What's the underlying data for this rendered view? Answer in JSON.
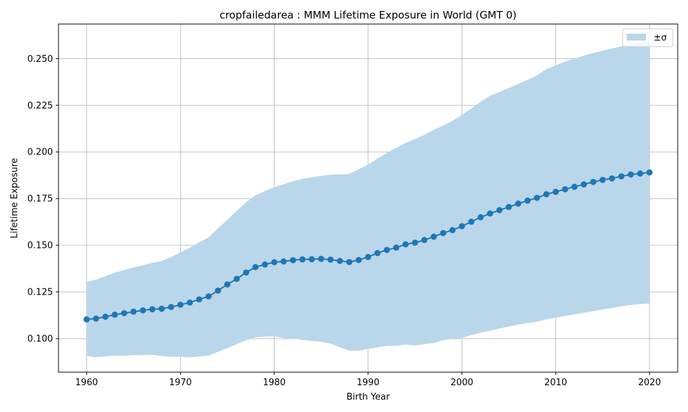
{
  "chart_data": {
    "type": "line",
    "title": "cropfailedarea : MMM Lifetime Exposure in World (GMT 0)",
    "xlabel": "Birth Year",
    "ylabel": "Lifetime Exposure",
    "xlim": [
      1957,
      2023
    ],
    "ylim": [
      0.082,
      0.2685
    ],
    "xticks": [
      1960,
      1970,
      1980,
      1990,
      2000,
      2010,
      2020
    ],
    "xtick_labels": [
      "1960",
      "1970",
      "1980",
      "1990",
      "2000",
      "2010",
      "2020"
    ],
    "yticks": [
      0.1,
      0.125,
      0.15,
      0.175,
      0.2,
      0.225,
      0.25
    ],
    "ytick_labels": [
      "0.100",
      "0.125",
      "0.150",
      "0.175",
      "0.200",
      "0.225",
      "0.250"
    ],
    "grid": true,
    "legend": {
      "position": "top-right",
      "entries": [
        "±σ"
      ]
    },
    "colors": {
      "line": "#1f77b4",
      "band": "#bad6ea"
    },
    "x": [
      1960,
      1961,
      1962,
      1963,
      1964,
      1965,
      1966,
      1967,
      1968,
      1969,
      1970,
      1971,
      1972,
      1973,
      1974,
      1975,
      1976,
      1977,
      1978,
      1979,
      1980,
      1981,
      1982,
      1983,
      1984,
      1985,
      1986,
      1987,
      1988,
      1989,
      1990,
      1991,
      1992,
      1993,
      1994,
      1995,
      1996,
      1997,
      1998,
      1999,
      2000,
      2001,
      2002,
      2003,
      2004,
      2005,
      2006,
      2007,
      2008,
      2009,
      2010,
      2011,
      2012,
      2013,
      2014,
      2015,
      2016,
      2017,
      2018,
      2019,
      2020
    ],
    "series": [
      {
        "name": "",
        "values": [
          0.1103,
          0.1107,
          0.1117,
          0.1128,
          0.1136,
          0.1144,
          0.1151,
          0.1157,
          0.116,
          0.1169,
          0.1181,
          0.1193,
          0.121,
          0.1226,
          0.1257,
          0.129,
          0.132,
          0.1354,
          0.1383,
          0.1397,
          0.1409,
          0.1413,
          0.142,
          0.1424,
          0.1425,
          0.1427,
          0.1423,
          0.1416,
          0.141,
          0.1421,
          0.1437,
          0.1458,
          0.1475,
          0.1487,
          0.1505,
          0.1514,
          0.1528,
          0.1546,
          0.1565,
          0.1581,
          0.1602,
          0.1626,
          0.165,
          0.167,
          0.1688,
          0.1705,
          0.1723,
          0.1739,
          0.1754,
          0.1773,
          0.1786,
          0.18,
          0.1813,
          0.1826,
          0.1839,
          0.185,
          0.1858,
          0.1869,
          0.1879,
          0.1884,
          0.189
        ]
      }
    ],
    "band": {
      "name": "±σ",
      "upper": [
        0.1303,
        0.1316,
        0.1334,
        0.1353,
        0.1367,
        0.1381,
        0.1393,
        0.1406,
        0.1415,
        0.1437,
        0.1463,
        0.1487,
        0.1515,
        0.1542,
        0.159,
        0.1636,
        0.1684,
        0.1731,
        0.1767,
        0.179,
        0.1811,
        0.1827,
        0.1843,
        0.1856,
        0.1864,
        0.1872,
        0.1878,
        0.188,
        0.1882,
        0.1907,
        0.1932,
        0.1964,
        0.1995,
        0.2021,
        0.2048,
        0.2069,
        0.2092,
        0.2118,
        0.2141,
        0.2167,
        0.2198,
        0.2232,
        0.2269,
        0.2301,
        0.2321,
        0.2342,
        0.2364,
        0.2386,
        0.241,
        0.2444,
        0.2464,
        0.2484,
        0.25,
        0.2516,
        0.253,
        0.2542,
        0.2554,
        0.2565,
        0.2577,
        0.2587,
        0.2597
      ],
      "lower": [
        0.0907,
        0.09,
        0.0904,
        0.0908,
        0.0908,
        0.0911,
        0.0912,
        0.0913,
        0.0907,
        0.0903,
        0.0902,
        0.0899,
        0.0904,
        0.0909,
        0.0929,
        0.0949,
        0.097,
        0.099,
        0.1007,
        0.101,
        0.1012,
        0.1003,
        0.1,
        0.0993,
        0.0987,
        0.0983,
        0.0973,
        0.0953,
        0.0935,
        0.0935,
        0.0944,
        0.0953,
        0.0961,
        0.0961,
        0.0968,
        0.0963,
        0.097,
        0.0977,
        0.099,
        0.1,
        0.1004,
        0.1018,
        0.1031,
        0.1042,
        0.1054,
        0.1064,
        0.1075,
        0.1083,
        0.109,
        0.1103,
        0.1112,
        0.1121,
        0.113,
        0.1138,
        0.1147,
        0.1156,
        0.1164,
        0.1173,
        0.118,
        0.1185,
        0.1188
      ]
    }
  }
}
